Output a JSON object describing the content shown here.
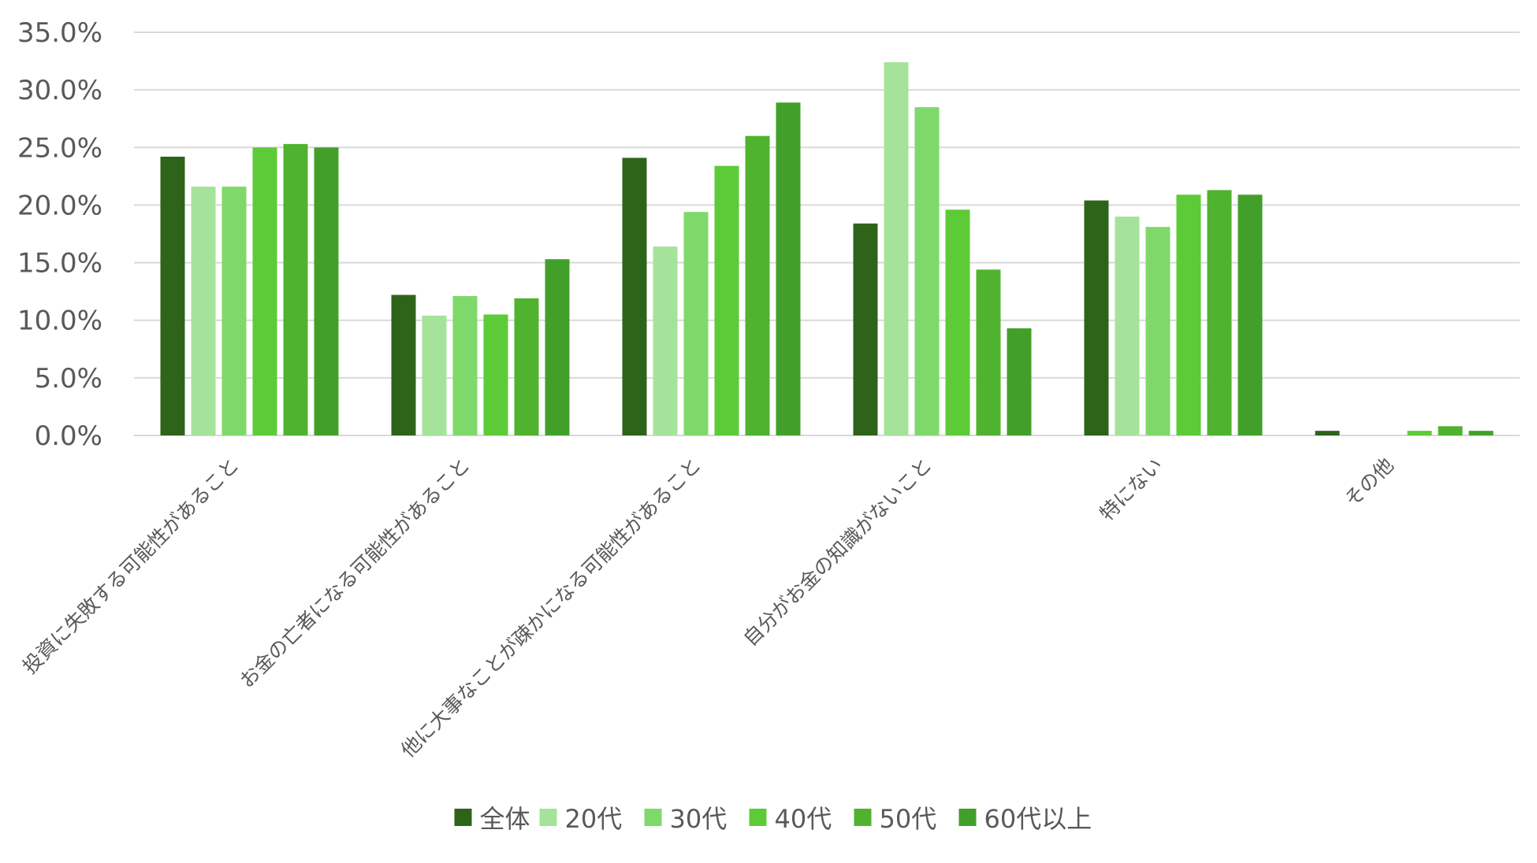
{
  "chart_data": {
    "type": "bar",
    "title": "",
    "xlabel": "",
    "ylabel": "",
    "ylim": [
      0,
      35
    ],
    "yticks": [
      0,
      5,
      10,
      15,
      20,
      25,
      30,
      35
    ],
    "ytick_labels": [
      "0.0%",
      "5.0%",
      "10.0%",
      "15.0%",
      "20.0%",
      "25.0%",
      "30.0%",
      "35.0%"
    ],
    "grid": true,
    "legend_position": "bottom",
    "categories": [
      "投資に失敗する可能性があること",
      "お金の亡者になる可能性があること",
      "他に大事なことが疎かになる可能性があること",
      "自分がお金の知識がないこと",
      "特にない",
      "その他"
    ],
    "series": [
      {
        "name": "全体",
        "color": "#2e6419",
        "values": [
          24.2,
          12.2,
          24.1,
          18.4,
          20.4,
          0.4
        ]
      },
      {
        "name": "20代",
        "color": "#a6e39a",
        "values": [
          21.6,
          10.4,
          16.4,
          32.4,
          19.0,
          0.0
        ]
      },
      {
        "name": "30代",
        "color": "#7fd96a",
        "values": [
          21.6,
          12.1,
          19.4,
          28.5,
          18.1,
          0.0
        ]
      },
      {
        "name": "40代",
        "color": "#5ccb37",
        "values": [
          25.0,
          10.5,
          23.4,
          19.6,
          20.9,
          0.4
        ]
      },
      {
        "name": "50代",
        "color": "#50b32f",
        "values": [
          25.3,
          11.9,
          26.0,
          14.4,
          21.3,
          0.8
        ]
      },
      {
        "name": "60代以上",
        "color": "#42a02a",
        "values": [
          25.0,
          15.3,
          28.9,
          9.3,
          20.9,
          0.4
        ]
      }
    ]
  }
}
